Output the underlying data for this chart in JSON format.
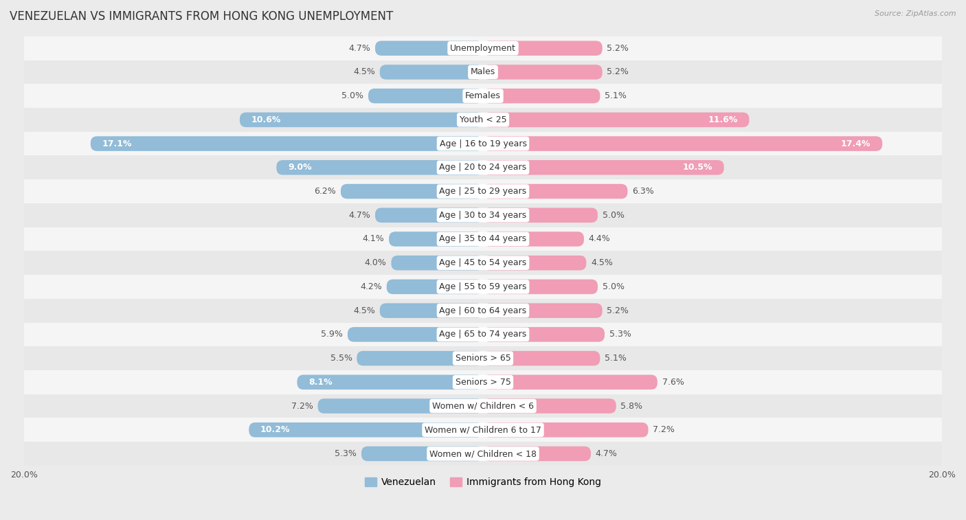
{
  "title": "VENEZUELAN VS IMMIGRANTS FROM HONG KONG UNEMPLOYMENT",
  "source": "Source: ZipAtlas.com",
  "categories": [
    "Unemployment",
    "Males",
    "Females",
    "Youth < 25",
    "Age | 16 to 19 years",
    "Age | 20 to 24 years",
    "Age | 25 to 29 years",
    "Age | 30 to 34 years",
    "Age | 35 to 44 years",
    "Age | 45 to 54 years",
    "Age | 55 to 59 years",
    "Age | 60 to 64 years",
    "Age | 65 to 74 years",
    "Seniors > 65",
    "Seniors > 75",
    "Women w/ Children < 6",
    "Women w/ Children 6 to 17",
    "Women w/ Children < 18"
  ],
  "venezuelan": [
    4.7,
    4.5,
    5.0,
    10.6,
    17.1,
    9.0,
    6.2,
    4.7,
    4.1,
    4.0,
    4.2,
    4.5,
    5.9,
    5.5,
    8.1,
    7.2,
    10.2,
    5.3
  ],
  "hong_kong": [
    5.2,
    5.2,
    5.1,
    11.6,
    17.4,
    10.5,
    6.3,
    5.0,
    4.4,
    4.5,
    5.0,
    5.2,
    5.3,
    5.1,
    7.6,
    5.8,
    7.2,
    4.7
  ],
  "venezuelan_color": "#92bcd8",
  "hong_kong_color": "#f09db5",
  "venezuelan_label_color": "#92bcd8",
  "hong_kong_label_color": "#f09db5",
  "row_colors": [
    "#f5f5f5",
    "#e8e8e8"
  ],
  "background_color": "#ebebeb",
  "xlim": 20.0,
  "bar_height": 0.62,
  "label_fontsize": 9,
  "category_fontsize": 9,
  "title_fontsize": 12,
  "source_fontsize": 8
}
